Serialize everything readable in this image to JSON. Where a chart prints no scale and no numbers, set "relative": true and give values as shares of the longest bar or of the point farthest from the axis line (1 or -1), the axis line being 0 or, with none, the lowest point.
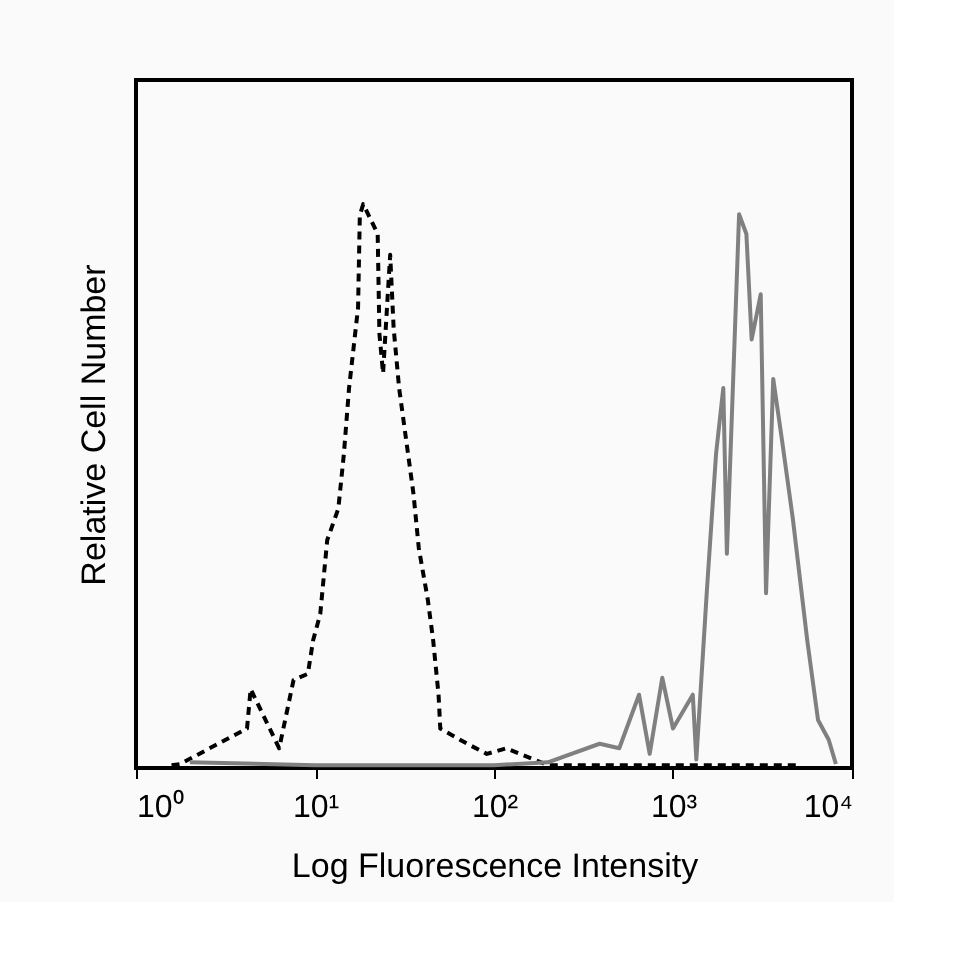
{
  "chart_data": {
    "type": "line",
    "relative": true,
    "xlabel": "Log Fluorescence Intensity",
    "ylabel": "Relative Cell Number",
    "log": "x",
    "xlim": [
      1,
      10000
    ],
    "xticks": [
      {
        "value": 1,
        "label": "10⁰"
      },
      {
        "value": 10,
        "label": "10¹"
      },
      {
        "value": 100,
        "label": "10²"
      },
      {
        "value": 1000,
        "label": "10³"
      },
      {
        "value": 10000,
        "label": "10⁴"
      }
    ],
    "grid": false,
    "marker": "none",
    "series": [
      {
        "color": "#000000",
        "line_style": "dashed",
        "x": [
          1.58,
          1.76,
          4.17,
          4.37,
          6.31,
          7.59,
          9.12,
          9.77,
          10.7,
          11.7,
          13.5,
          14.5,
          15.5,
          17.4,
          17.8,
          18.6,
          22.4,
          22.9,
          24.0,
          26.3,
          27.5,
          29.5,
          33.1,
          35.5,
          38.0,
          42.7,
          45.7,
          49.0,
          50.1,
          70.8,
          91.2,
          117,
          200,
          3160,
          5010
        ],
        "values": [
          0.005,
          0.007,
          0.07,
          0.14,
          0.035,
          0.156,
          0.167,
          0.227,
          0.273,
          0.404,
          0.46,
          0.557,
          0.674,
          0.816,
          0.98,
          1,
          0.947,
          0.77,
          0.7,
          0.91,
          0.78,
          0.674,
          0.557,
          0.486,
          0.39,
          0.298,
          0.227,
          0.13,
          0.07,
          0.043,
          0.025,
          0.035,
          0.005,
          0.005,
          0.005
        ]
      },
      {
        "color": "#808080",
        "line_style": "solid",
        "x": [
          2.0,
          10,
          100,
          200,
          389,
          501,
          646,
          741,
          871,
          1000,
          1290,
          1350,
          1550,
          1740,
          1910,
          2000,
          2140,
          2340,
          2570,
          2750,
          3090,
          3310,
          3630,
          4070,
          4680,
          5620,
          6460,
          7410,
          8130
        ],
        "values": [
          0.01,
          0.005,
          0.005,
          0.01,
          0.043,
          0.035,
          0.13,
          0.025,
          0.16,
          0.07,
          0.13,
          0.015,
          0.32,
          0.557,
          0.674,
          0.38,
          0.638,
          0.982,
          0.947,
          0.76,
          0.84,
          0.31,
          0.69,
          0.58,
          0.44,
          0.227,
          0.085,
          0.05,
          0.007
        ]
      }
    ]
  }
}
